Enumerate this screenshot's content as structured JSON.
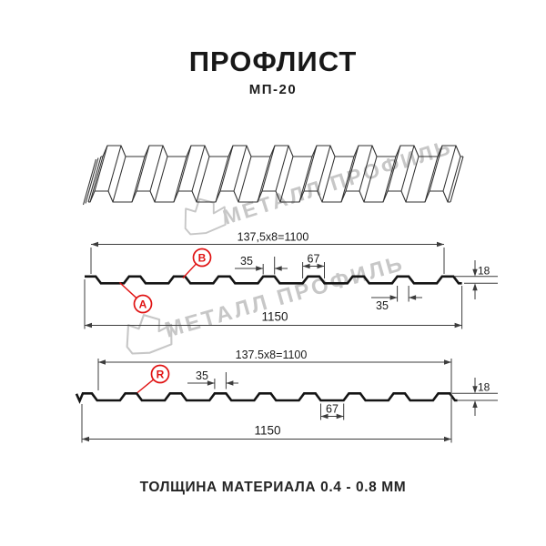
{
  "title": "ПРОФЛИСТ",
  "subtitle": "МП-20",
  "footer": "ТОЛЩИНА МАТЕРИАЛА 0.4 - 0.8 ММ",
  "watermark": {
    "text": "МЕТАЛЛ ПРОФИЛЬ",
    "color": "#c7c7c7"
  },
  "colors": {
    "ink": "#1a1a1a",
    "dim_line": "#3c3c3c",
    "accent_red": "#e01212"
  },
  "drawing1": {
    "pitch_dim": "137,5x8=1100",
    "overall_width": "1150",
    "rib_top_width": "35",
    "rib_base_width": "67",
    "height": "18",
    "rib_top_width_b": "35",
    "label_a": "A",
    "label_b": "B"
  },
  "drawing2": {
    "pitch_dim": "137.5x8=1100",
    "overall_width": "1150",
    "rib_top_width": "35",
    "valley_width": "67",
    "height": "18",
    "label_r": "R"
  }
}
